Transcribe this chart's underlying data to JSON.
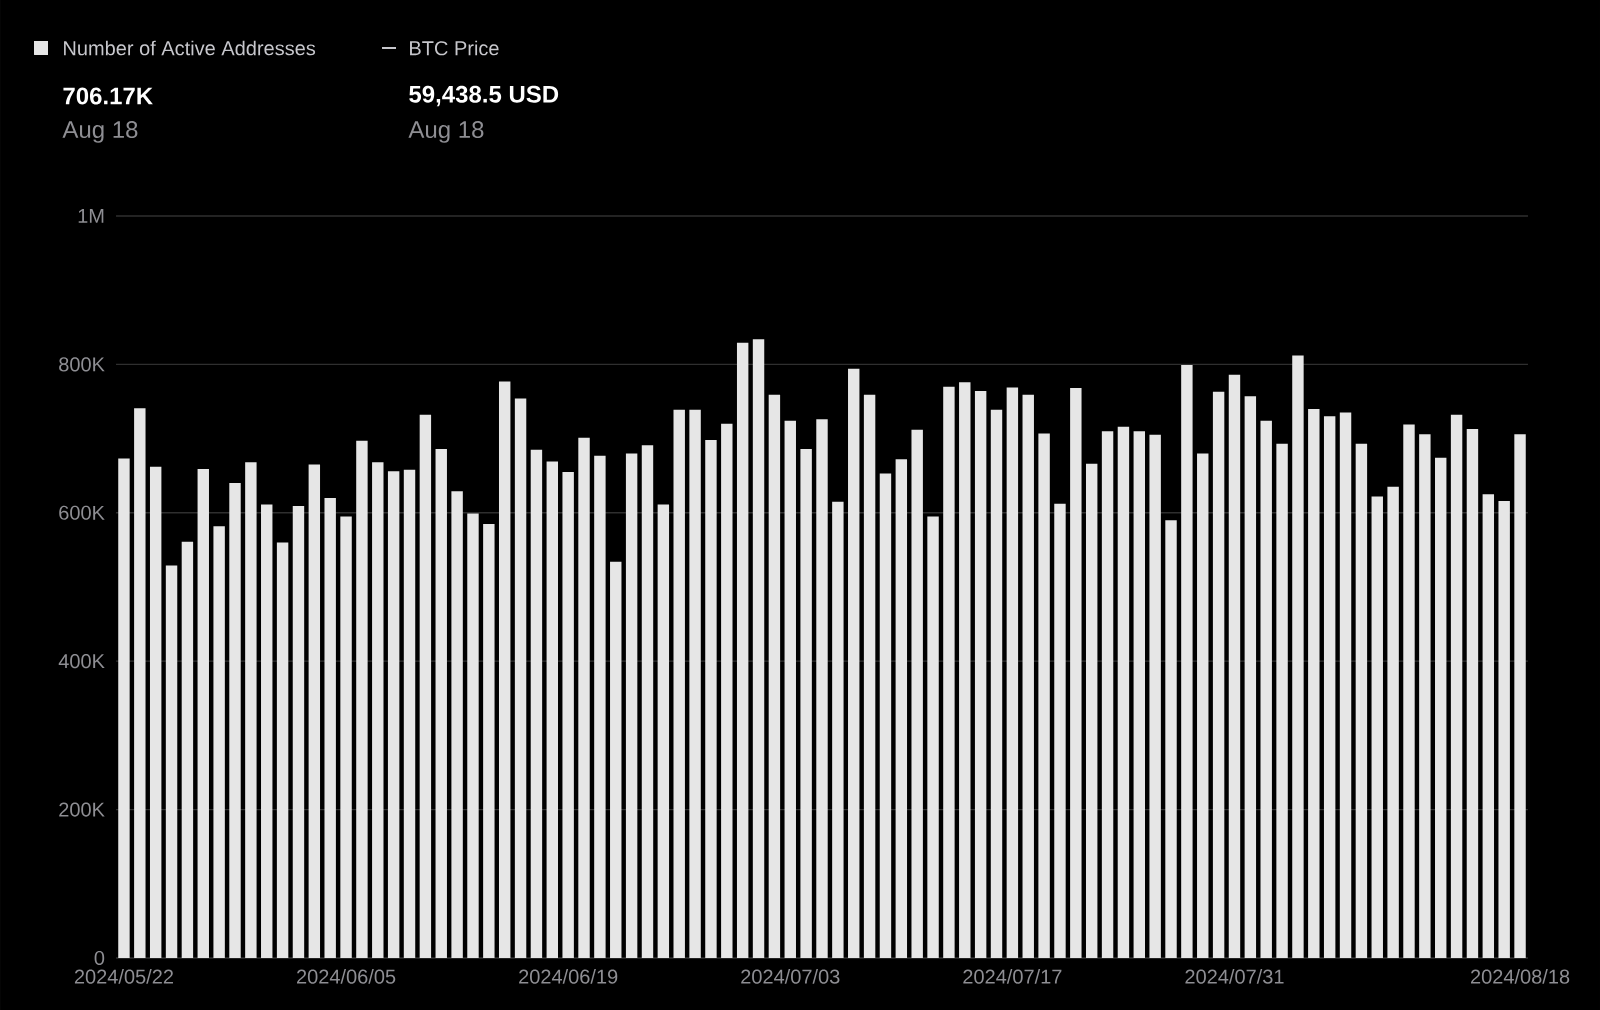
{
  "chart_data": {
    "type": "bar",
    "categories": [
      "2024/05/22",
      null,
      null,
      null,
      null,
      null,
      null,
      null,
      null,
      null,
      null,
      null,
      null,
      null,
      "2024/06/05",
      null,
      null,
      null,
      null,
      null,
      null,
      null,
      null,
      null,
      null,
      null,
      null,
      null,
      "2024/06/19",
      null,
      null,
      null,
      null,
      null,
      null,
      null,
      null,
      null,
      null,
      null,
      null,
      null,
      "2024/07/03",
      null,
      null,
      null,
      null,
      null,
      null,
      null,
      null,
      null,
      null,
      null,
      null,
      null,
      "2024/07/17",
      null,
      null,
      null,
      null,
      null,
      null,
      null,
      null,
      null,
      null,
      null,
      null,
      null,
      "2024/07/31",
      null,
      null,
      null,
      null,
      null,
      null,
      null,
      null,
      null,
      null,
      null,
      null,
      null,
      null,
      null,
      null,
      null,
      "2024/08/18"
    ],
    "series": [
      {
        "name": "Number of Active Addresses",
        "color": "#e6e6e6",
        "values": [
          673000,
          741000,
          662000,
          529000,
          561000,
          659000,
          582000,
          640000,
          668000,
          611000,
          560000,
          609000,
          665000,
          620000,
          595000,
          697000,
          668000,
          656000,
          658000,
          732000,
          686000,
          629000,
          599000,
          585000,
          777000,
          754000,
          685000,
          669000,
          655000,
          701000,
          677000,
          534000,
          680000,
          691000,
          611000,
          739000,
          739000,
          698000,
          720000,
          829000,
          834000,
          759000,
          724000,
          686000,
          726000,
          615000,
          794000,
          759000,
          653000,
          672000,
          712000,
          595000,
          770000,
          776000,
          764000,
          739000,
          769000,
          759000,
          707000,
          612000,
          768000,
          666000,
          710000,
          716000,
          710000,
          705000,
          590000,
          799000,
          680000,
          763000,
          786000,
          757000,
          724000,
          693000,
          812000,
          740000,
          730000,
          735000,
          693000,
          622000,
          635000,
          719000,
          706000,
          674000,
          732000,
          713000,
          625000,
          616000,
          706000
        ]
      }
    ],
    "ylim": [
      0,
      1000000
    ],
    "yticks": [
      0,
      {
        "value": 200000,
        "label": "200K"
      },
      {
        "value": 400000,
        "label": "400K"
      },
      {
        "value": 600000,
        "label": "600K"
      },
      {
        "value": 800000,
        "label": "800K"
      },
      {
        "value": 1000000,
        "label": "1M"
      }
    ],
    "grid": "y",
    "legend": "top left",
    "annotations": [
      "BTC Price",
      "706.17K",
      "Aug 18",
      "59,438.5 USD",
      "Aug 18"
    ]
  }
}
